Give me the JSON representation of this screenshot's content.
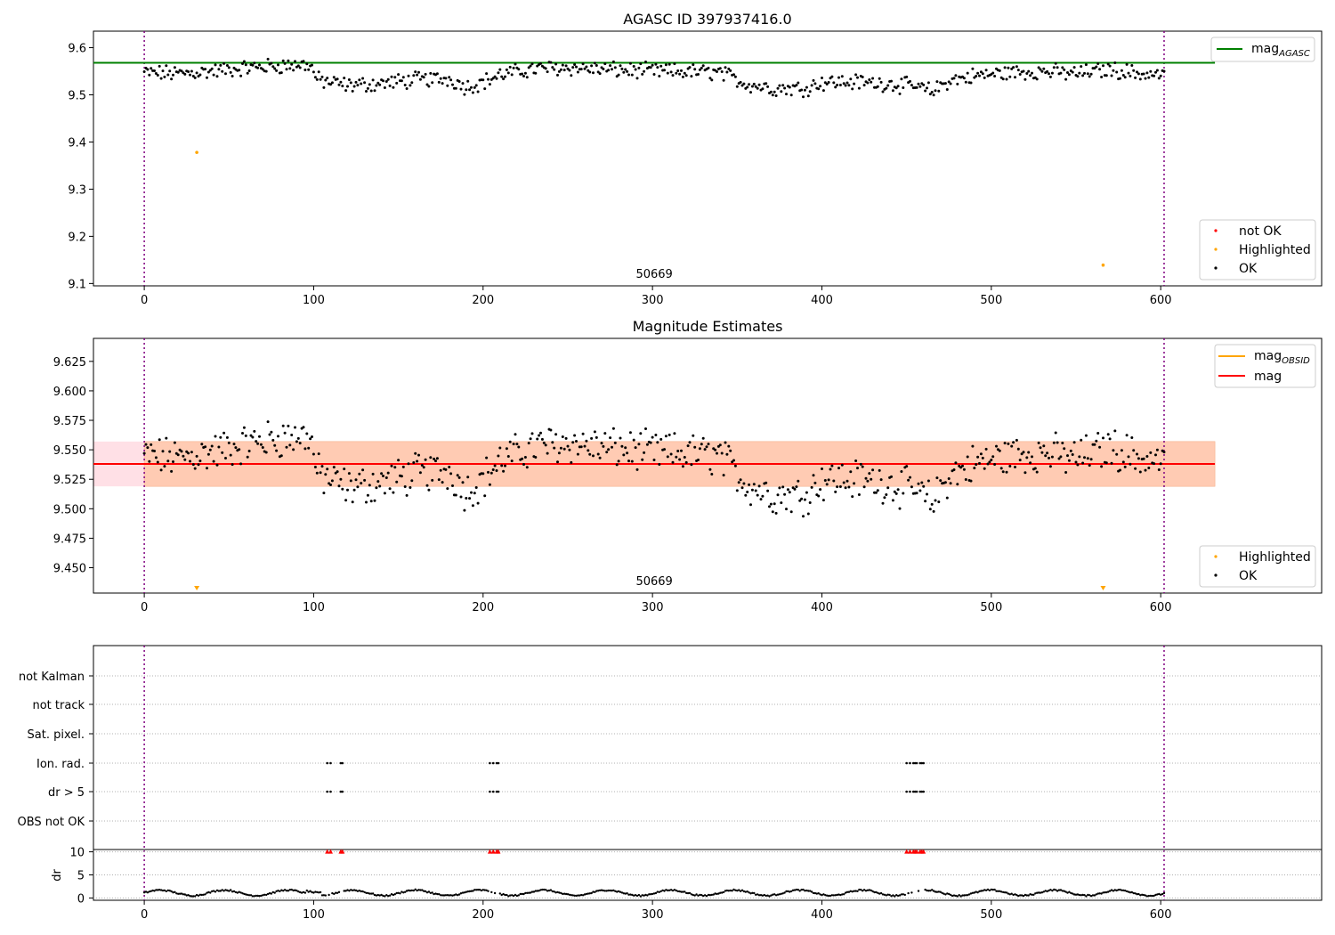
{
  "chart_data": [
    {
      "type": "scatter",
      "title": "AGASC ID 397937416.0",
      "xlim": [
        -30,
        695
      ],
      "ylim": [
        9.095,
        9.635
      ],
      "xticks": [
        "0",
        "100",
        "200",
        "300",
        "400",
        "500",
        "600"
      ],
      "yticks": [
        "9.1",
        "9.2",
        "9.3",
        "9.4",
        "9.5",
        "9.6"
      ],
      "grid": false,
      "vlines": [
        0,
        602
      ],
      "hline": {
        "y": 9.568,
        "label": "mag_AGASC",
        "color": "#008000"
      },
      "obsid_text": {
        "label": "50669",
        "x": 300
      },
      "series": [
        {
          "name": "not OK",
          "color": "#ff0000",
          "points": []
        },
        {
          "name": "Highlighted",
          "color": "#ffa500",
          "points": [
            [
              31,
              9.378
            ],
            [
              566,
              9.139
            ]
          ]
        },
        {
          "name": "OK",
          "color": "#000000",
          "description": "~600 points, x 0-602, y 9.49-9.59 tracking the mag trace"
        }
      ],
      "legend_top": {
        "placement": "upper right",
        "entries": [
          {
            "label": "mag",
            "sub": "AGASC",
            "color": "#008000"
          }
        ]
      },
      "legend_bottom": {
        "placement": "lower right",
        "entries": [
          "not OK",
          "Highlighted",
          "OK"
        ]
      }
    },
    {
      "type": "scatter",
      "title": "Magnitude Estimates",
      "xlim": [
        -30,
        695
      ],
      "ylim": [
        9.4285,
        9.6445
      ],
      "xticks": [
        "0",
        "100",
        "200",
        "300",
        "400",
        "500",
        "600"
      ],
      "yticks": [
        "9.450",
        "9.475",
        "9.500",
        "9.525",
        "9.550",
        "9.575",
        "9.600",
        "9.625"
      ],
      "grid": false,
      "vlines": [
        0,
        602
      ],
      "mag_line": {
        "y": 9.538,
        "x_end": 632,
        "color": "#ff0000"
      },
      "band_inner": {
        "y0": 9.519,
        "y1": 9.557,
        "x_end": 632,
        "color": "#ffcbb3"
      },
      "band_outer": {
        "y0": 9.519,
        "y1": 9.557,
        "x0": -30,
        "x_end": 632,
        "color": "#ffe0e6"
      },
      "obsid_text": {
        "label": "50669",
        "x": 300
      },
      "highlight_markers": [
        31,
        566
      ],
      "legend_top": {
        "placement": "upper right",
        "entries": [
          {
            "label": "mag",
            "sub": "OBSID",
            "color": "#ffa500"
          },
          {
            "label": "mag",
            "sub": "",
            "color": "#ff0000"
          }
        ]
      },
      "legend_bottom": {
        "placement": "lower right",
        "entries": [
          "Highlighted",
          "OK"
        ]
      },
      "series": [
        {
          "name": "Highlighted",
          "color": "#ffa500"
        },
        {
          "name": "OK",
          "color": "#000000"
        }
      ]
    },
    {
      "type": "scatter",
      "title": "",
      "xlim": [
        -30,
        695
      ],
      "xticks": [
        "0",
        "100",
        "200",
        "300",
        "400",
        "500",
        "600"
      ],
      "vlines": [
        0,
        602
      ],
      "flag_rows": [
        "not Kalman",
        "not track",
        "Sat. pixel.",
        "Ion. rad.",
        "dr > 5",
        "OBS not OK"
      ],
      "flag_points": {
        "Ion. rad.": [
          108,
          110,
          116,
          117,
          204,
          206,
          208,
          209,
          450,
          452,
          454,
          455,
          456,
          458,
          459,
          460
        ],
        "dr > 5": [
          108,
          110,
          116,
          117,
          204,
          206,
          208,
          209,
          450,
          452,
          454,
          455,
          456,
          458,
          459,
          460
        ]
      },
      "dr_panel": {
        "ylabel": "dr",
        "ylim": [
          -0.5,
          10.5
        ],
        "yticks": [
          "0",
          "5",
          "10"
        ],
        "clipped_red_x": [
          108,
          110,
          116,
          117,
          204,
          206,
          208,
          209,
          450,
          452,
          454,
          455,
          456,
          458,
          459,
          460
        ]
      }
    }
  ]
}
